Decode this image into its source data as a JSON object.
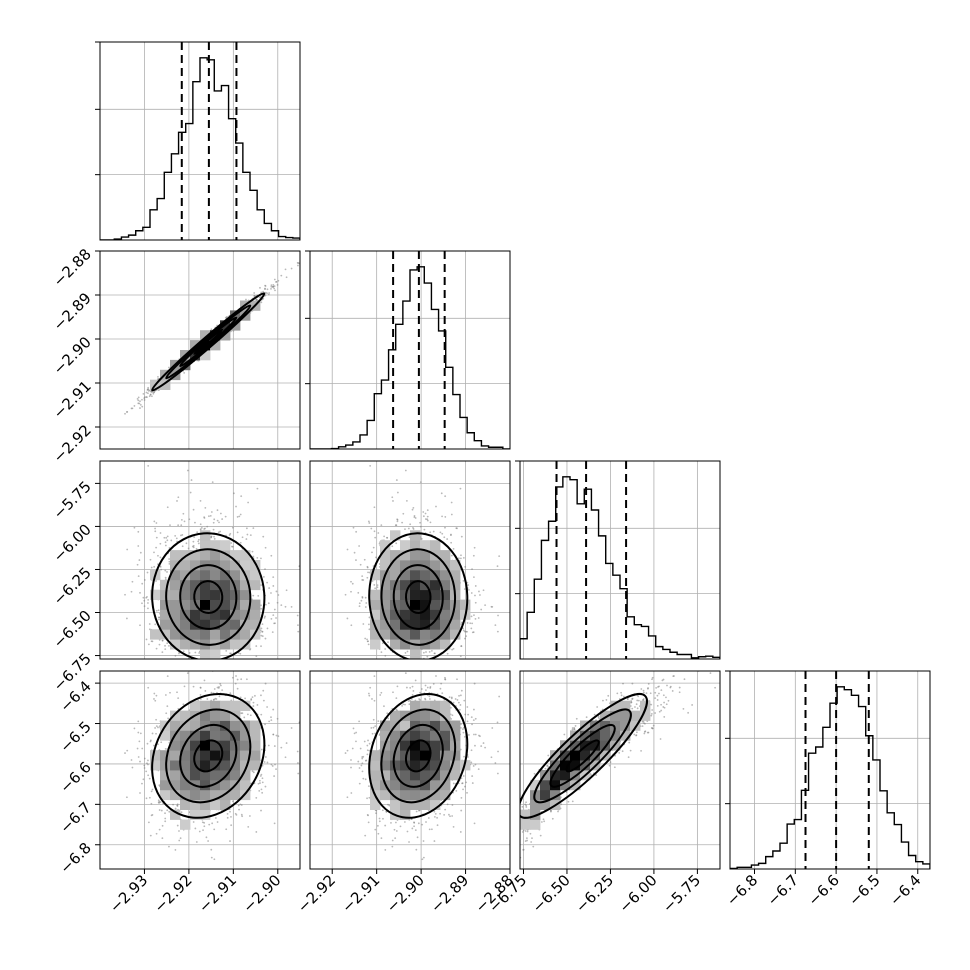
{
  "chart_data": {
    "type": "corner",
    "n_params": 4,
    "grid": true,
    "axes": [
      {
        "index": 0,
        "range": [
          -2.94,
          -2.895
        ],
        "ticks": [
          -2.93,
          -2.92,
          -2.91,
          -2.9
        ],
        "tick_labels": [
          "−2.93",
          "−2.92",
          "−2.91",
          "−2.90"
        ]
      },
      {
        "index": 1,
        "range": [
          -2.925,
          -2.88
        ],
        "ticks": [
          -2.92,
          -2.91,
          -2.9,
          -2.89,
          -2.88
        ],
        "tick_labels": [
          "−2.92",
          "−2.91",
          "−2.90",
          "−2.89",
          "−2.88"
        ]
      },
      {
        "index": 2,
        "range": [
          -6.77,
          -5.62
        ],
        "ticks": [
          -6.75,
          -6.5,
          -6.25,
          -6.0,
          -5.75
        ],
        "tick_labels": [
          "−6.75",
          "−6.50",
          "−6.25",
          "−6.00",
          "−5.75"
        ]
      },
      {
        "index": 3,
        "range": [
          -6.86,
          -6.37
        ],
        "ticks": [
          -6.8,
          -6.7,
          -6.6,
          -6.5,
          -6.4
        ],
        "tick_labels": [
          "−6.8",
          "−6.7",
          "−6.6",
          "−6.5",
          "−6.4"
        ]
      }
    ],
    "marginals": [
      {
        "param": 0,
        "mean": -2.9155,
        "sd": 0.0063,
        "skew": 0,
        "quantiles": [
          -2.9216,
          -2.9155,
          -2.9093
        ]
      },
      {
        "param": 1,
        "mean": -2.9005,
        "sd": 0.0055,
        "skew": 0,
        "quantiles": [
          -2.9063,
          -2.9005,
          -2.8947
        ]
      },
      {
        "param": 2,
        "mean": -6.41,
        "sd": 0.18,
        "skew": 0.25,
        "quantiles": [
          -6.56,
          -6.39,
          -6.16
        ]
      },
      {
        "param": 3,
        "mean": -6.58,
        "sd": 0.075,
        "skew": 0,
        "quantiles": [
          -6.675,
          -6.6,
          -6.52
        ]
      }
    ],
    "correlations": [
      {
        "pair": [
          0,
          1
        ],
        "rho": 0.99
      },
      {
        "pair": [
          0,
          2
        ],
        "rho": -0.05
      },
      {
        "pair": [
          1,
          2
        ],
        "rho": -0.05
      },
      {
        "pair": [
          0,
          3
        ],
        "rho": 0.45
      },
      {
        "pair": [
          1,
          3
        ],
        "rho": 0.45
      },
      {
        "pair": [
          2,
          3
        ],
        "rho": 0.9
      }
    ],
    "colors": {
      "mark": "#000000",
      "grid": "#b0b0b0",
      "points": "#7f7f7f"
    }
  }
}
